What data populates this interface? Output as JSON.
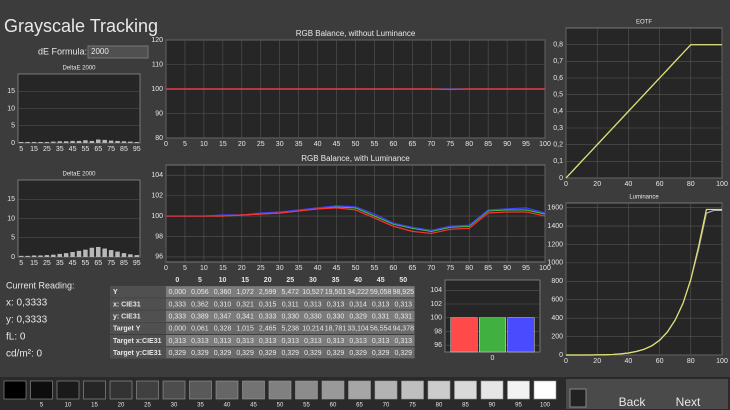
{
  "title": "Grayscale Tracking",
  "de_formula": {
    "label": "dE Formula:",
    "value": "2000"
  },
  "charts": {
    "deltae_top": {
      "type": "bar",
      "title": "DeltaE 2000",
      "categories": [
        5,
        null,
        15,
        null,
        25,
        null,
        35,
        null,
        45,
        null,
        55,
        null,
        65,
        null,
        75,
        null,
        85,
        null,
        95
      ],
      "values": [
        0.3,
        0.3,
        0.3,
        0.3,
        0.3,
        0.4,
        0.5,
        0.5,
        0.6,
        0.6,
        0.8,
        0.6,
        1.0,
        0.9,
        0.7,
        0.6,
        0.5,
        0.4,
        0.3
      ],
      "color": "#b8b8b8",
      "ylim": [
        0,
        20
      ],
      "yticks": [
        0,
        5,
        10,
        15
      ]
    },
    "deltae_bottom": {
      "type": "bar",
      "title": "DeltaE 2000",
      "categories": [
        5,
        null,
        15,
        null,
        25,
        null,
        35,
        null,
        45,
        null,
        55,
        null,
        65,
        null,
        75,
        null,
        85,
        null,
        95
      ],
      "values": [
        0.3,
        0.3,
        0.4,
        0.4,
        0.5,
        0.6,
        0.8,
        1.0,
        1.3,
        1.6,
        1.9,
        2.4,
        2.6,
        2.2,
        1.8,
        1.4,
        1.0,
        0.7,
        0.5
      ],
      "color": "#b8b8b8",
      "ylim": [
        0,
        20
      ],
      "yticks": [
        0,
        5,
        10,
        15
      ]
    },
    "rgb_no_lum": {
      "type": "line",
      "title": "RGB Balance, without Luminance",
      "x": [
        0,
        5,
        10,
        15,
        20,
        25,
        30,
        35,
        40,
        45,
        50,
        55,
        60,
        65,
        70,
        75,
        80,
        85,
        90,
        95,
        100
      ],
      "xlim": [
        0,
        100
      ],
      "xticks": [
        0,
        5,
        10,
        15,
        20,
        25,
        30,
        35,
        40,
        45,
        50,
        55,
        60,
        65,
        70,
        75,
        80,
        85,
        90,
        95,
        100
      ],
      "ylim": [
        80,
        120
      ],
      "yticks": [
        80,
        90,
        100,
        110,
        120
      ],
      "series": [
        {
          "name": "Green",
          "color": "#40c040",
          "values": [
            100,
            100,
            100,
            100,
            100,
            100,
            100,
            100,
            100,
            100,
            100,
            100,
            100,
            100,
            100,
            100,
            100,
            100,
            100,
            100,
            100
          ]
        },
        {
          "name": "Blue",
          "color": "#4040ff",
          "values": [
            100,
            100,
            100,
            100,
            100,
            100,
            100,
            100,
            100,
            100,
            100,
            100,
            100,
            100,
            100,
            100,
            100,
            100,
            100,
            100,
            100
          ]
        },
        {
          "name": "Red",
          "color": "#ff3030",
          "values": [
            100,
            100,
            100,
            100,
            100,
            100,
            100,
            100,
            100,
            100,
            100,
            100,
            100,
            100,
            100,
            99.8,
            100,
            100,
            100,
            100,
            100
          ]
        }
      ]
    },
    "rgb_lum": {
      "type": "line",
      "title": "RGB Balance, with Luminance",
      "x": [
        0,
        5,
        10,
        15,
        20,
        25,
        30,
        35,
        40,
        45,
        50,
        55,
        60,
        65,
        70,
        75,
        80,
        85,
        90,
        95,
        100
      ],
      "xlim": [
        0,
        100
      ],
      "xticks": [
        0,
        5,
        10,
        15,
        20,
        25,
        30,
        35,
        40,
        45,
        50,
        55,
        60,
        65,
        70,
        75,
        80,
        85,
        90,
        95,
        100
      ],
      "ylim": [
        95.5,
        105
      ],
      "yticks": [
        96,
        98,
        100,
        102,
        104
      ],
      "series": [
        {
          "name": "Green",
          "color": "#40c040",
          "values": [
            100,
            100,
            100,
            100,
            100.1,
            100.2,
            100.3,
            100.5,
            100.7,
            100.9,
            100.8,
            100,
            99.2,
            98.8,
            98.5,
            98.9,
            99,
            100.5,
            100.6,
            100.6,
            100.2
          ]
        },
        {
          "name": "Blue",
          "color": "#4040ff",
          "values": [
            100,
            100,
            100,
            100.1,
            100.1,
            100.3,
            100.4,
            100.6,
            100.8,
            101,
            100.9,
            100.2,
            99.3,
            98.9,
            98.6,
            99,
            99.1,
            100.6,
            100.7,
            100.8,
            100.3
          ]
        },
        {
          "name": "Red",
          "color": "#ff3030",
          "values": [
            100,
            100,
            100,
            100,
            100.1,
            100.2,
            100.3,
            100.5,
            100.7,
            100.8,
            100.6,
            99.8,
            99,
            98.5,
            98.3,
            98.7,
            98.8,
            100.3,
            100.4,
            100.4,
            100
          ]
        }
      ]
    },
    "eotf": {
      "type": "line",
      "title": "EOTF",
      "x": [
        0,
        5,
        10,
        15,
        20,
        25,
        30,
        35,
        40,
        45,
        50,
        55,
        60,
        65,
        70,
        75,
        80,
        85,
        90,
        95,
        100
      ],
      "xlim": [
        0,
        100
      ],
      "xticks": [
        0,
        20,
        40,
        60,
        80,
        100
      ],
      "ylim": [
        0,
        0.9
      ],
      "yticks": [
        0,
        {
          "value": 0.1,
          "label": "0,1"
        },
        {
          "value": 0.2,
          "label": "0,2"
        },
        {
          "value": 0.3,
          "label": "0,3"
        },
        {
          "value": 0.4,
          "label": "0,4"
        },
        {
          "value": 0.5,
          "label": "0,5"
        },
        {
          "value": 0.6,
          "label": "0,6"
        },
        {
          "value": 0.7,
          "label": "0,7"
        },
        {
          "value": 0.8,
          "label": "0,8"
        }
      ],
      "series": [
        {
          "name": "Target",
          "color": "#b0b0b0",
          "values": [
            0,
            0.05,
            0.1,
            0.15,
            0.2,
            0.25,
            0.3,
            0.35,
            0.4,
            0.45,
            0.5,
            0.55,
            0.6,
            0.65,
            0.7,
            0.75,
            0.8,
            0.8,
            0.8,
            0.8,
            0.8
          ]
        },
        {
          "name": "Measured",
          "color": "#e0e070",
          "values": [
            0,
            0.05,
            0.1,
            0.15,
            0.2,
            0.25,
            0.3,
            0.35,
            0.4,
            0.45,
            0.5,
            0.55,
            0.6,
            0.65,
            0.7,
            0.75,
            0.8,
            0.8,
            0.8,
            0.8,
            0.8
          ]
        }
      ]
    },
    "luminance": {
      "type": "line",
      "title": "Luminance",
      "x": [
        0,
        5,
        10,
        15,
        20,
        25,
        30,
        35,
        40,
        45,
        50,
        55,
        60,
        65,
        70,
        75,
        80,
        85,
        90,
        95,
        100
      ],
      "xlim": [
        0,
        100
      ],
      "xticks": [
        0,
        20,
        40,
        60,
        80,
        100
      ],
      "ylim": [
        0,
        1650
      ],
      "yticks": [
        0,
        200,
        400,
        600,
        800,
        1000,
        1200,
        1400,
        1600
      ],
      "series": [
        {
          "name": "Target",
          "color": "#b0b0b0",
          "values": [
            0,
            0,
            0,
            0,
            1,
            3,
            6,
            12,
            22,
            38,
            62,
            100,
            160,
            250,
            380,
            560,
            820,
            1150,
            1540,
            1570,
            1570
          ]
        },
        {
          "name": "Measured",
          "color": "#e0e070",
          "values": [
            0,
            0,
            0,
            0,
            1,
            3,
            6,
            12,
            22,
            38,
            62,
            100,
            160,
            250,
            380,
            560,
            820,
            1180,
            1580,
            1580,
            1580
          ]
        }
      ]
    },
    "rgb_bars": {
      "type": "grouped-bar",
      "categories": [
        "0"
      ],
      "ylim": [
        95,
        105.5
      ],
      "yticks": [
        96,
        98,
        100,
        102,
        104
      ],
      "series": [
        {
          "name": "Red",
          "color": "#ff4a4a",
          "values": [
            100
          ]
        },
        {
          "name": "Green",
          "color": "#40b040",
          "values": [
            100
          ]
        },
        {
          "name": "Blue",
          "color": "#4a4aff",
          "values": [
            100
          ]
        }
      ]
    }
  },
  "current_reading": {
    "label": "Current Reading:",
    "items": [
      "x: 0,3333",
      "y: 0,3333",
      "fL: 0",
      "cd/m²: 0"
    ]
  },
  "table": {
    "columns": [
      "0",
      "5",
      "10",
      "15",
      "20",
      "25",
      "30",
      "35",
      "40",
      "45",
      "50"
    ],
    "rows": [
      [
        "Y",
        "0,000",
        "0,056",
        "0,360",
        "1,072",
        "2,599",
        "5,472",
        "10,527",
        "19,501",
        "34,222",
        "59,058",
        "98,925"
      ],
      [
        "x: CIE31",
        "0,333",
        "0,362",
        "0,310",
        "0,321",
        "0,315",
        "0,311",
        "0,313",
        "0,313",
        "0,314",
        "0,313",
        "0,313"
      ],
      [
        "y: CIE31",
        "0,333",
        "0,389",
        "0,347",
        "0,341",
        "0,333",
        "0,330",
        "0,330",
        "0,330",
        "0,329",
        "0,331",
        "0,331"
      ],
      [
        "Target Y",
        "0,000",
        "0,061",
        "0,328",
        "1,015",
        "2,465",
        "5,238",
        "10,214",
        "18,781",
        "33,104",
        "56,554",
        "94,378"
      ],
      [
        "Target x:CIE31",
        "0,313",
        "0,313",
        "0,313",
        "0,313",
        "0,313",
        "0,313",
        "0,313",
        "0,313",
        "0,313",
        "0,313",
        "0,313"
      ],
      [
        "Target y:CIE31",
        "0,329",
        "0,329",
        "0,329",
        "0,329",
        "0,329",
        "0,329",
        "0,329",
        "0,329",
        "0,329",
        "0,329",
        "0,329"
      ]
    ]
  },
  "swatches": [
    null,
    5,
    10,
    15,
    20,
    25,
    30,
    35,
    40,
    45,
    50,
    55,
    60,
    65,
    70,
    75,
    80,
    85,
    90,
    95,
    100
  ],
  "buttons": {
    "back": "Back",
    "next": "Next"
  }
}
